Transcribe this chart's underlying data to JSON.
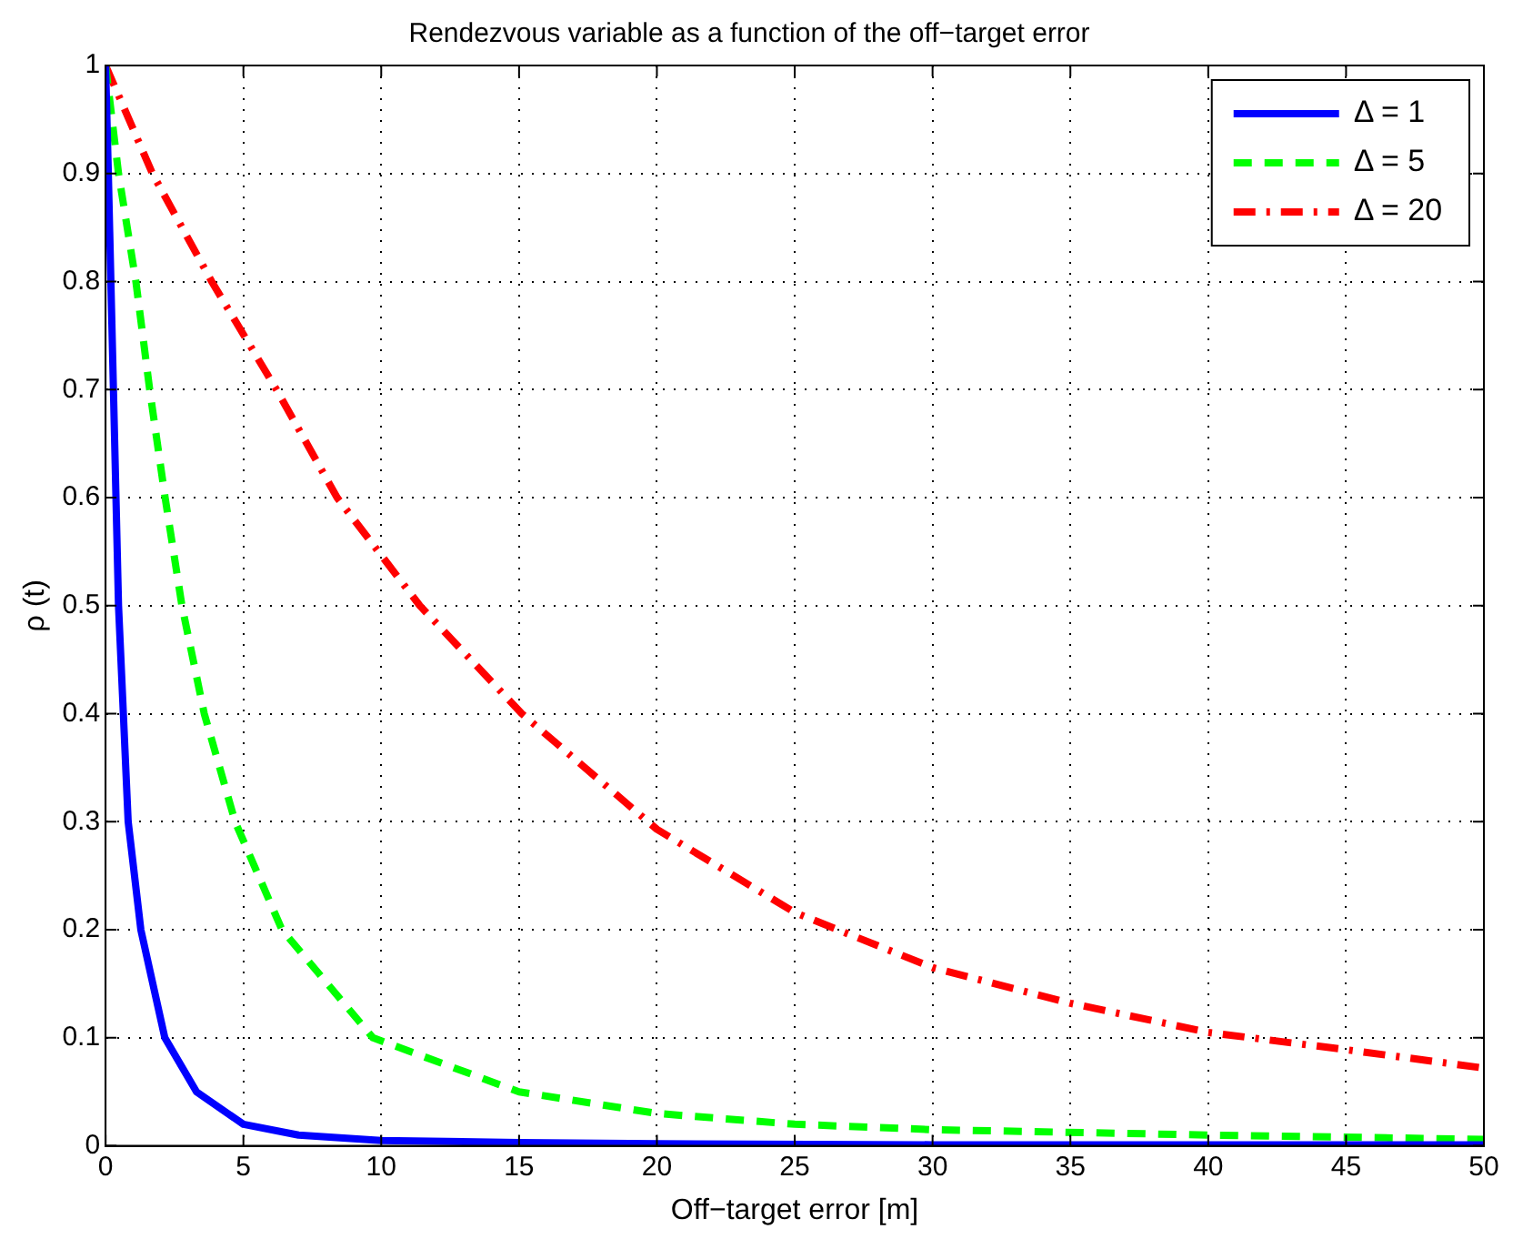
{
  "chart_data": {
    "type": "line",
    "title": "Rendezvous variable as a function of the off−target error",
    "xlabel": "Off−target error [m]",
    "ylabel": "ρ (t)",
    "xlim": [
      0,
      50
    ],
    "ylim": [
      0,
      1
    ],
    "xticks": [
      0,
      5,
      10,
      15,
      20,
      25,
      30,
      35,
      40,
      45,
      50
    ],
    "yticks": [
      0,
      0.1,
      0.2,
      0.3,
      0.4,
      0.5,
      0.6,
      0.7,
      0.8,
      0.9,
      1
    ],
    "grid": true,
    "legend": "top right",
    "marker": "none",
    "series": [
      {
        "name": "Δ = 1",
        "color": "#0000ff",
        "line_style": "solid",
        "x": [
          0,
          0.1,
          0.47,
          0.82,
          1.28,
          2.15,
          3.3,
          5,
          7,
          10,
          15,
          20,
          30,
          40,
          50
        ],
        "values": [
          1,
          0.9,
          0.5,
          0.3,
          0.2,
          0.1,
          0.05,
          0.02,
          0.01,
          0.005,
          0.003,
          0.002,
          0.001,
          0.001,
          0.001
        ]
      },
      {
        "name": "Δ = 5",
        "color": "#00ff00",
        "line_style": "dashed",
        "x": [
          0,
          0.47,
          1.1,
          1.6,
          2.16,
          2.77,
          3.58,
          4.7,
          6.4,
          9.7,
          15,
          20,
          25,
          30,
          40,
          50
        ],
        "values": [
          1,
          0.9,
          0.8,
          0.7,
          0.6,
          0.5,
          0.4,
          0.3,
          0.2,
          0.1,
          0.05,
          0.03,
          0.02,
          0.015,
          0.01,
          0.006
        ]
      },
      {
        "name": "Δ = 20",
        "color": "#ff0000",
        "line_style": "dashdot",
        "x": [
          0,
          1.7,
          3.85,
          6.2,
          8.4,
          11.4,
          15.1,
          20,
          25,
          30,
          35,
          40,
          45,
          50
        ],
        "values": [
          1,
          0.9,
          0.8,
          0.7,
          0.6,
          0.5,
          0.4,
          0.293,
          0.216,
          0.165,
          0.132,
          0.105,
          0.089,
          0.072
        ]
      }
    ]
  }
}
